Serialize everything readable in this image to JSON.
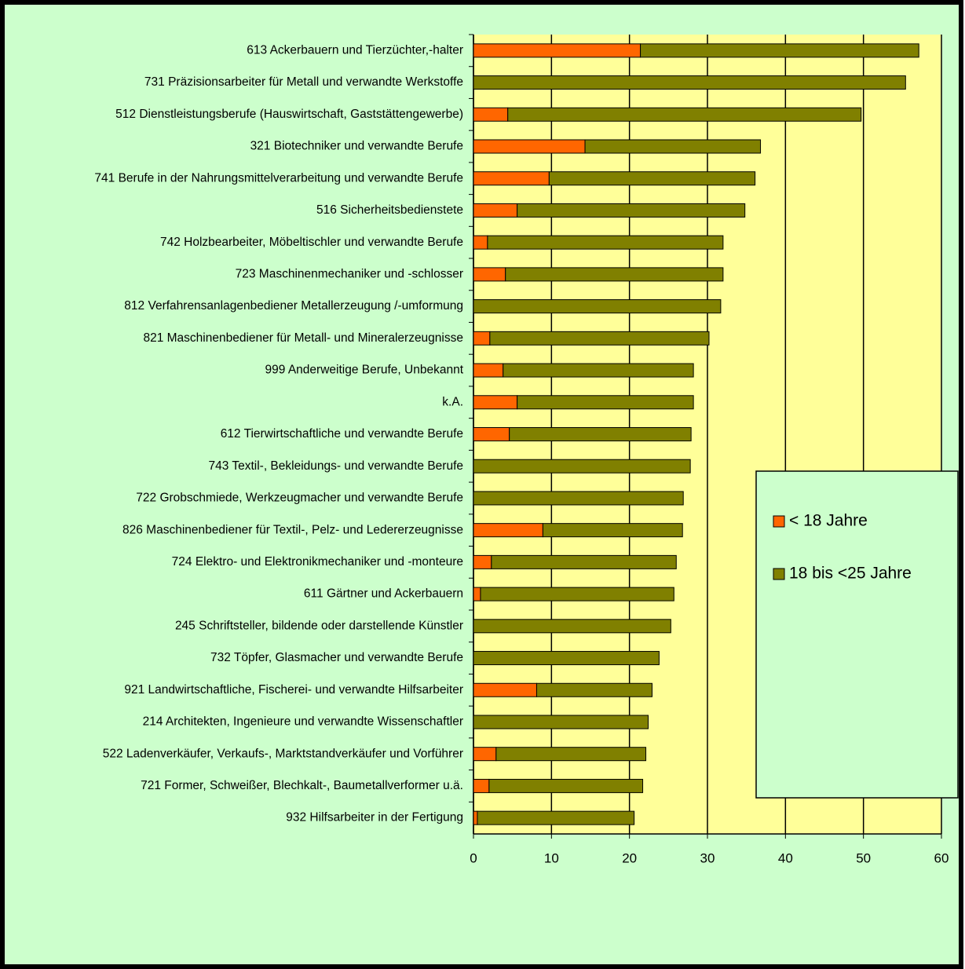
{
  "chart_data": {
    "type": "stacked_barh",
    "categories": [
      "613 Ackerbauern und Tierzüchter,-halter",
      "731 Präzisionsarbeiter für Metall und verwandte Werkstoffe",
      "512 Dienstleistungsberufe (Hauswirtschaft, Gaststättengewerbe)",
      "321 Biotechniker und verwandte Berufe",
      "741 Berufe in der Nahrungsmittelverarbeitung und verwandte Berufe",
      "516 Sicherheitsbedienstete",
      "742 Holzbearbeiter, Möbeltischler und verwandte Berufe",
      "723 Maschinenmechaniker und -schlosser",
      "812 Verfahrensanlagenbediener Metallerzeugung /-umformung",
      "821 Maschinenbediener für Metall- und Mineralerzeugnisse",
      "999 Anderweitige Berufe, Unbekannt",
      "k.A.",
      "612 Tierwirtschaftliche und verwandte Berufe",
      "743 Textil-, Bekleidungs- und verwandte Berufe",
      "722 Grobschmiede, Werkzeugmacher und verwandte Berufe",
      "826 Maschinenbediener für Textil-, Pelz- und Ledererzeugnisse",
      "724 Elektro- und Elektronikmechaniker und -monteure",
      "611 Gärtner und Ackerbauern",
      "245 Schriftsteller, bildende oder darstellende Künstler",
      "732 Töpfer, Glasmacher und verwandte Berufe",
      "921 Landwirtschaftliche, Fischerei- und verwandte Hilfsarbeiter",
      "214 Architekten, Ingenieure und verwandte Wissenschaftler",
      "522 Ladenverkäufer, Verkaufs-, Marktstandverkäufer und Vorführer",
      "721 Former, Schweißer, Blechkalt-, Baumetallverformer u.ä.",
      "932 Hilfsarbeiter in der Fertigung"
    ],
    "series": [
      {
        "name": "< 18 Jahre",
        "color": "#ff6600",
        "values": [
          21.4,
          0,
          4.4,
          14.3,
          9.7,
          5.6,
          1.8,
          4.1,
          0,
          2.1,
          3.8,
          5.6,
          4.6,
          0,
          0,
          8.9,
          2.3,
          0.9,
          0,
          0,
          8.1,
          0,
          2.9,
          2.0,
          0.5
        ]
      },
      {
        "name": "18 bis <25 Jahre",
        "color": "#808000",
        "values": [
          35.7,
          55.4,
          45.3,
          22.5,
          26.4,
          29.2,
          30.2,
          27.9,
          31.7,
          28.1,
          24.4,
          22.6,
          23.3,
          27.8,
          26.9,
          17.9,
          23.7,
          24.8,
          25.3,
          23.8,
          14.8,
          22.4,
          19.2,
          19.7,
          20.1
        ]
      }
    ],
    "xlim": [
      0,
      60
    ],
    "xticks": [
      0,
      10,
      20,
      30,
      40,
      50,
      60
    ],
    "grid": true,
    "legend": "lower right"
  }
}
